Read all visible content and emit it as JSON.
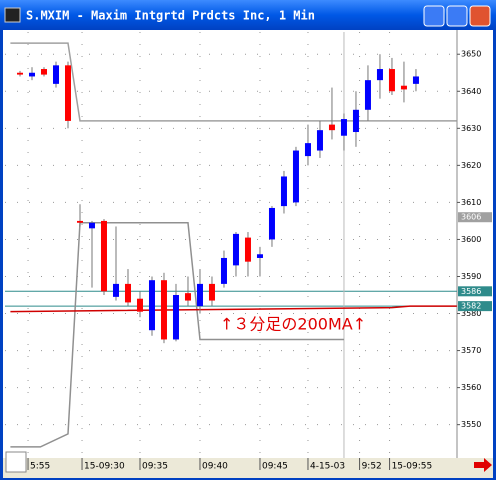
{
  "window": {
    "title": "S.MXIM - Maxim Intgrtd Prdcts Inc, 1 Min"
  },
  "chart_data": {
    "type": "candlestick",
    "x": [
      0,
      1,
      2,
      3,
      4,
      5,
      6,
      7,
      8,
      9,
      10,
      11,
      12,
      13,
      14,
      15,
      16,
      17,
      18,
      19,
      20,
      21,
      22,
      23,
      24,
      25,
      26,
      27,
      28,
      29,
      30,
      31,
      32,
      33
    ],
    "open": [
      3645,
      3644,
      3646,
      3642,
      3647,
      3605,
      3603,
      3605,
      3584.5,
      3588,
      3584,
      3575.5,
      3589,
      3573,
      3585.5,
      3582,
      3588,
      3588,
      3593,
      3600.5,
      3595,
      3600,
      3609,
      3610,
      3622.5,
      3624,
      3631,
      3628,
      3629,
      3635,
      3643,
      3646,
      3641.5,
      3642
    ],
    "high": [
      3645.5,
      3646.5,
      3646.5,
      3648,
      3648,
      3609.5,
      3605,
      3605.5,
      3603.5,
      3592,
      3586,
      3590,
      3591,
      3588,
      3590,
      3592,
      3590,
      3597,
      3602,
      3602,
      3598,
      3609,
      3618.5,
      3625,
      3631,
      3632,
      3641,
      3634,
      3640,
      3647,
      3650,
      3649,
      3648,
      3646
    ],
    "low": [
      3644,
      3643,
      3644,
      3641,
      3630,
      3603.5,
      3587,
      3585,
      3583.5,
      3582,
      3579,
      3574,
      3572,
      3572.5,
      3582,
      3580,
      3582,
      3587,
      3590,
      3590,
      3590,
      3598,
      3607,
      3609,
      3620,
      3622,
      3627,
      3624,
      3625,
      3632,
      3638,
      3639,
      3637,
      3640
    ],
    "close": [
      3644.5,
      3645,
      3644.5,
      3647,
      3632,
      3604.5,
      3604.5,
      3586,
      3588,
      3583,
      3580.5,
      3589,
      3573,
      3585,
      3583.5,
      3588,
      3583.5,
      3595,
      3601.5,
      3594,
      3596,
      3608.5,
      3617,
      3624,
      3626,
      3629.5,
      3629.5,
      3632.5,
      3635,
      3643,
      3646,
      3640,
      3640.5,
      3644
    ],
    "up_color": "#0000ff",
    "down_color": "#ff0000",
    "xlim": [
      -1.25,
      36.42
    ],
    "ylim": [
      3541,
      3656
    ],
    "yticks": [
      3550,
      3560,
      3570,
      3580,
      3590,
      3600,
      3610,
      3620,
      3630,
      3640,
      3650
    ],
    "xticks": [
      {
        "value": 0.67,
        "label": "5:55"
      },
      {
        "value": 5.17,
        "label": "15-09:30"
      },
      {
        "value": 10,
        "label": "09:35"
      },
      {
        "value": 15,
        "label": "09:40"
      },
      {
        "value": 20,
        "label": "09:45"
      },
      {
        "value": 24,
        "label": "4-15-03"
      },
      {
        "value": 28.3,
        "label": "9:52"
      },
      {
        "value": 30.8,
        "label": "15-09:55"
      }
    ],
    "grid": true,
    "lines": [
      {
        "color": "#a0a0a0",
        "x": [
          -0.8,
          4,
          5,
          36.4
        ],
        "values": [
          3653,
          3653,
          3632,
          3632
        ]
      },
      {
        "color": "#909090",
        "x": [
          -0.8,
          1.7,
          4,
          5,
          14,
          15,
          27
        ],
        "values": [
          3544,
          3544,
          3547.5,
          3604.5,
          3604.5,
          3573,
          3573
        ]
      },
      {
        "color": "#d00000",
        "x": [
          -0.8,
          31,
          32.5,
          36.4
        ],
        "values": [
          3580.5,
          3581.6,
          3582,
          3582
        ]
      }
    ],
    "price_markers": [
      {
        "value": 3606,
        "color": "#a0a0a0",
        "line": false
      },
      {
        "value": 3586,
        "color": "#2e8b8b",
        "line": true
      },
      {
        "value": 3582,
        "color": "#2e8b8b",
        "line": true
      }
    ],
    "cursor_x": 27,
    "annotation": "↑３分足の200MA↑"
  }
}
